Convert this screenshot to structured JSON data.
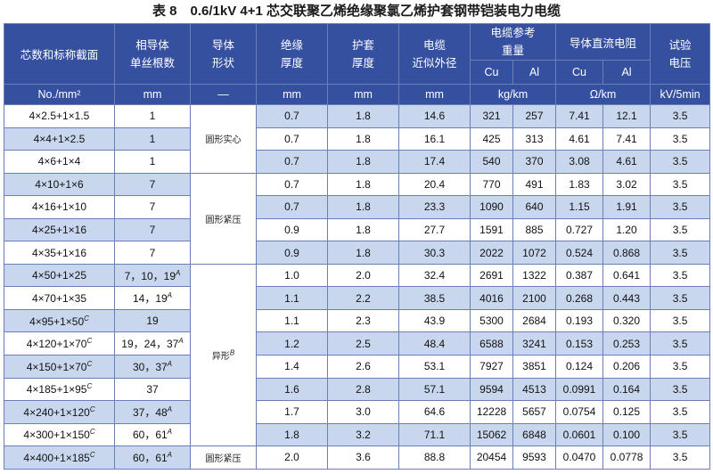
{
  "title": "表 8　0.6/1kV 4+1 芯交联聚乙烯绝缘聚氯乙烯护套钢带铠装电力电缆",
  "header": {
    "core_label": "芯数和标称截面",
    "strands_label_1": "相导体",
    "strands_label_2": "单丝根数",
    "shape_label_1": "导体",
    "shape_label_2": "形状",
    "insulation_label_1": "绝缘",
    "insulation_label_2": "厚度",
    "sheath_label_1": "护套",
    "sheath_label_2": "厚度",
    "diameter_label_1": "电缆",
    "diameter_label_2": "近似外径",
    "weight_label_1": "电缆参考",
    "weight_label_2": "重量",
    "resistance_label": "导体直流电阻",
    "voltage_label_1": "试验",
    "voltage_label_2": "电压",
    "cu": "Cu",
    "al": "Al",
    "cu2": "Cu",
    "al2": "Al",
    "unit_core": "No./mm²",
    "unit_strands": "mm",
    "unit_shape": "—",
    "unit_insulation": "mm",
    "unit_sheath": "mm",
    "unit_diameter": "mm",
    "unit_weight": "kg/km",
    "unit_resistance": "Ω/km",
    "unit_voltage": "kV/5min"
  },
  "shapes": {
    "round_solid": "圆形实心",
    "round_compact": "圆形紧压",
    "sector": "异形",
    "sector_sup": "B",
    "round_compact_last": "圆形紧压"
  },
  "rows": [
    {
      "core": "4×2.5+1×1.5",
      "core_sup": "",
      "strands": "1",
      "strands_sup": "",
      "ins": "0.7",
      "sheath": "1.8",
      "dia": "14.6",
      "cu_w": "321",
      "al_w": "257",
      "cu_r": "7.41",
      "al_r": "12.1",
      "v": "3.5"
    },
    {
      "core": "4×4+1×2.5",
      "core_sup": "",
      "strands": "1",
      "strands_sup": "",
      "ins": "0.7",
      "sheath": "1.8",
      "dia": "16.1",
      "cu_w": "425",
      "al_w": "313",
      "cu_r": "4.61",
      "al_r": "7.41",
      "v": "3.5"
    },
    {
      "core": "4×6+1×4",
      "core_sup": "",
      "strands": "1",
      "strands_sup": "",
      "ins": "0.7",
      "sheath": "1.8",
      "dia": "17.4",
      "cu_w": "540",
      "al_w": "370",
      "cu_r": "3.08",
      "al_r": "4.61",
      "v": "3.5"
    },
    {
      "core": "4×10+1×6",
      "core_sup": "",
      "strands": "7",
      "strands_sup": "",
      "ins": "0.7",
      "sheath": "1.8",
      "dia": "20.4",
      "cu_w": "770",
      "al_w": "491",
      "cu_r": "1.83",
      "al_r": "3.02",
      "v": "3.5"
    },
    {
      "core": "4×16+1×10",
      "core_sup": "",
      "strands": "7",
      "strands_sup": "",
      "ins": "0.7",
      "sheath": "1.8",
      "dia": "23.3",
      "cu_w": "1090",
      "al_w": "640",
      "cu_r": "1.15",
      "al_r": "1.91",
      "v": "3.5"
    },
    {
      "core": "4×25+1×16",
      "core_sup": "",
      "strands": "7",
      "strands_sup": "",
      "ins": "0.9",
      "sheath": "1.8",
      "dia": "27.7",
      "cu_w": "1591",
      "al_w": "885",
      "cu_r": "0.727",
      "al_r": "1.20",
      "v": "3.5"
    },
    {
      "core": "4×35+1×16",
      "core_sup": "",
      "strands": "7",
      "strands_sup": "",
      "ins": "0.9",
      "sheath": "1.8",
      "dia": "30.3",
      "cu_w": "2022",
      "al_w": "1072",
      "cu_r": "0.524",
      "al_r": "0.868",
      "v": "3.5"
    },
    {
      "core": "4×50+1×25",
      "core_sup": "",
      "strands": "7，10，19",
      "strands_sup": "A",
      "ins": "1.0",
      "sheath": "2.0",
      "dia": "32.4",
      "cu_w": "2691",
      "al_w": "1322",
      "cu_r": "0.387",
      "al_r": "0.641",
      "v": "3.5"
    },
    {
      "core": "4×70+1×35",
      "core_sup": "",
      "strands": "14，19",
      "strands_sup": "A",
      "ins": "1.1",
      "sheath": "2.2",
      "dia": "38.5",
      "cu_w": "4016",
      "al_w": "2100",
      "cu_r": "0.268",
      "al_r": "0.443",
      "v": "3.5"
    },
    {
      "core": "4×95+1×50",
      "core_sup": "C",
      "strands": "19",
      "strands_sup": "",
      "ins": "1.1",
      "sheath": "2.3",
      "dia": "43.9",
      "cu_w": "5300",
      "al_w": "2684",
      "cu_r": "0.193",
      "al_r": "0.320",
      "v": "3.5"
    },
    {
      "core": "4×120+1×70",
      "core_sup": "C",
      "strands": "19，24，37",
      "strands_sup": "A",
      "ins": "1.2",
      "sheath": "2.5",
      "dia": "48.4",
      "cu_w": "6588",
      "al_w": "3241",
      "cu_r": "0.153",
      "al_r": "0.253",
      "v": "3.5"
    },
    {
      "core": "4×150+1×70",
      "core_sup": "C",
      "strands": "30，37",
      "strands_sup": "A",
      "ins": "1.4",
      "sheath": "2.6",
      "dia": "53.1",
      "cu_w": "7927",
      "al_w": "3851",
      "cu_r": "0.124",
      "al_r": "0.206",
      "v": "3.5"
    },
    {
      "core": "4×185+1×95",
      "core_sup": "C",
      "strands": "37",
      "strands_sup": "",
      "ins": "1.6",
      "sheath": "2.8",
      "dia": "57.1",
      "cu_w": "9594",
      "al_w": "4513",
      "cu_r": "0.0991",
      "al_r": "0.164",
      "v": "3.5"
    },
    {
      "core": "4×240+1×120",
      "core_sup": "C",
      "strands": "37，48",
      "strands_sup": "A",
      "ins": "1.7",
      "sheath": "3.0",
      "dia": "64.6",
      "cu_w": "12228",
      "al_w": "5657",
      "cu_r": "0.0754",
      "al_r": "0.125",
      "v": "3.5"
    },
    {
      "core": "4×300+1×150",
      "core_sup": "C",
      "strands": "60，61",
      "strands_sup": "A",
      "ins": "1.8",
      "sheath": "3.2",
      "dia": "71.1",
      "cu_w": "15062",
      "al_w": "6848",
      "cu_r": "0.0601",
      "al_r": "0.100",
      "v": "3.5"
    },
    {
      "core": "4×400+1×185",
      "core_sup": "C",
      "strands": "60，61",
      "strands_sup": "A",
      "ins": "2.0",
      "sheath": "3.6",
      "dia": "88.8",
      "cu_w": "20454",
      "al_w": "9593",
      "cu_r": "0.0470",
      "al_r": "0.0778",
      "v": "3.5"
    }
  ]
}
